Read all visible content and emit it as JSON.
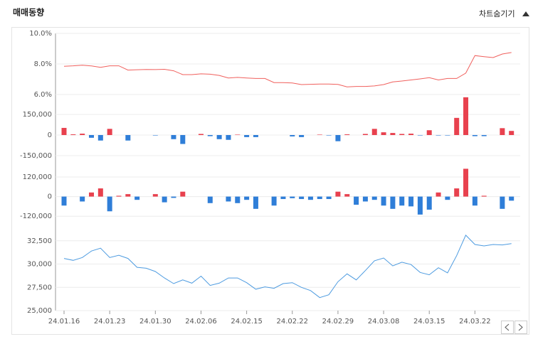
{
  "header": {
    "title": "매매동향",
    "toggle": "차트숨기기"
  },
  "chart_data": [
    {
      "type": "line",
      "color": "#f0605d",
      "ylim": [
        5.3,
        10
      ],
      "yticks": [
        {
          "value": 10,
          "label": "10.0%"
        },
        {
          "value": 8,
          "label": "8.0%"
        },
        {
          "value": 6,
          "label": "6.0%"
        }
      ],
      "values": [
        7.85,
        7.88,
        7.92,
        7.87,
        7.78,
        7.88,
        7.88,
        7.6,
        7.62,
        7.64,
        7.63,
        7.65,
        7.55,
        7.3,
        7.3,
        7.35,
        7.33,
        7.25,
        7.08,
        7.12,
        7.08,
        7.05,
        7.05,
        6.78,
        6.78,
        6.75,
        6.65,
        6.67,
        6.68,
        6.68,
        6.66,
        6.5,
        6.53,
        6.53,
        6.56,
        6.65,
        6.82,
        6.88,
        6.95,
        7.02,
        7.1,
        6.95,
        7.05,
        7.05,
        7.4,
        8.55,
        8.48,
        8.42,
        8.65,
        8.75
      ]
    },
    {
      "type": "bar",
      "up_color": "#e8414e",
      "down_color": "#2f7ed8",
      "ylim": [
        -220000,
        280000
      ],
      "yticks": [
        {
          "value": 150000,
          "label": "150,000"
        },
        0,
        {
          "value": -150000,
          "label": "-150,000"
        }
      ],
      "values": [
        52000,
        5000,
        10000,
        -20000,
        -40000,
        45000,
        0,
        -40000,
        0,
        0,
        -3000,
        0,
        -30000,
        -65000,
        0,
        8000,
        -8000,
        -30000,
        -35000,
        3000,
        -15000,
        -15000,
        0,
        0,
        0,
        -10000,
        -15000,
        0,
        3000,
        -3000,
        -45000,
        5000,
        0,
        8000,
        45000,
        20000,
        15000,
        8000,
        10000,
        -3000,
        35000,
        -3000,
        -3000,
        125000,
        275000,
        -8000,
        -8000,
        0,
        50000,
        30000
      ]
    },
    {
      "type": "bar",
      "up_color": "#e8414e",
      "down_color": "#2f7ed8",
      "ylim": [
        -180000,
        175000
      ],
      "yticks": [
        {
          "value": 120000,
          "label": "120,000"
        },
        0,
        {
          "value": -120000,
          "label": "-120,000"
        }
      ],
      "values": [
        -55000,
        0,
        -30000,
        25000,
        50000,
        -90000,
        5000,
        15000,
        -20000,
        0,
        15000,
        -35000,
        -8000,
        30000,
        0,
        0,
        -40000,
        0,
        -30000,
        -40000,
        -20000,
        -75000,
        0,
        -55000,
        -15000,
        -10000,
        -15000,
        -20000,
        -15000,
        -15000,
        30000,
        15000,
        -50000,
        -30000,
        -20000,
        -55000,
        -75000,
        -55000,
        -60000,
        -110000,
        -80000,
        25000,
        -20000,
        50000,
        170000,
        -55000,
        5000,
        0,
        -75000,
        -25000
      ]
    },
    {
      "type": "line",
      "color": "#4d9be0",
      "ylim": [
        25000,
        34000
      ],
      "yticks": [
        {
          "value": 32500,
          "label": "32,500"
        },
        {
          "value": 30000,
          "label": "30,000"
        },
        {
          "value": 27500,
          "label": "27,500"
        },
        {
          "value": 25000,
          "label": "25,000"
        }
      ],
      "categories": [
        "24.01.16",
        null,
        null,
        null,
        null,
        "24.01.23",
        null,
        null,
        null,
        null,
        "24.01.30",
        null,
        null,
        null,
        null,
        "24.02.06",
        null,
        null,
        null,
        null,
        "24.02.15",
        null,
        null,
        null,
        null,
        "24.02.22",
        null,
        null,
        null,
        null,
        "24.02.29",
        null,
        null,
        null,
        null,
        "24.03.08",
        null,
        null,
        null,
        null,
        "24.03.15",
        null,
        null,
        null,
        null,
        "24.03.22",
        null,
        null,
        null,
        null
      ],
      "values": [
        30600,
        30400,
        30700,
        31400,
        31700,
        30700,
        30950,
        30600,
        29650,
        29550,
        29200,
        28500,
        27900,
        28300,
        27950,
        28700,
        27700,
        27950,
        28500,
        28500,
        28000,
        27300,
        27550,
        27400,
        27900,
        28000,
        27500,
        27150,
        26400,
        26700,
        28100,
        28950,
        28300,
        29300,
        30350,
        30650,
        29800,
        30200,
        29950,
        29100,
        28850,
        29600,
        29050,
        30900,
        33100,
        32100,
        31950,
        32100,
        32050,
        32200
      ]
    }
  ]
}
